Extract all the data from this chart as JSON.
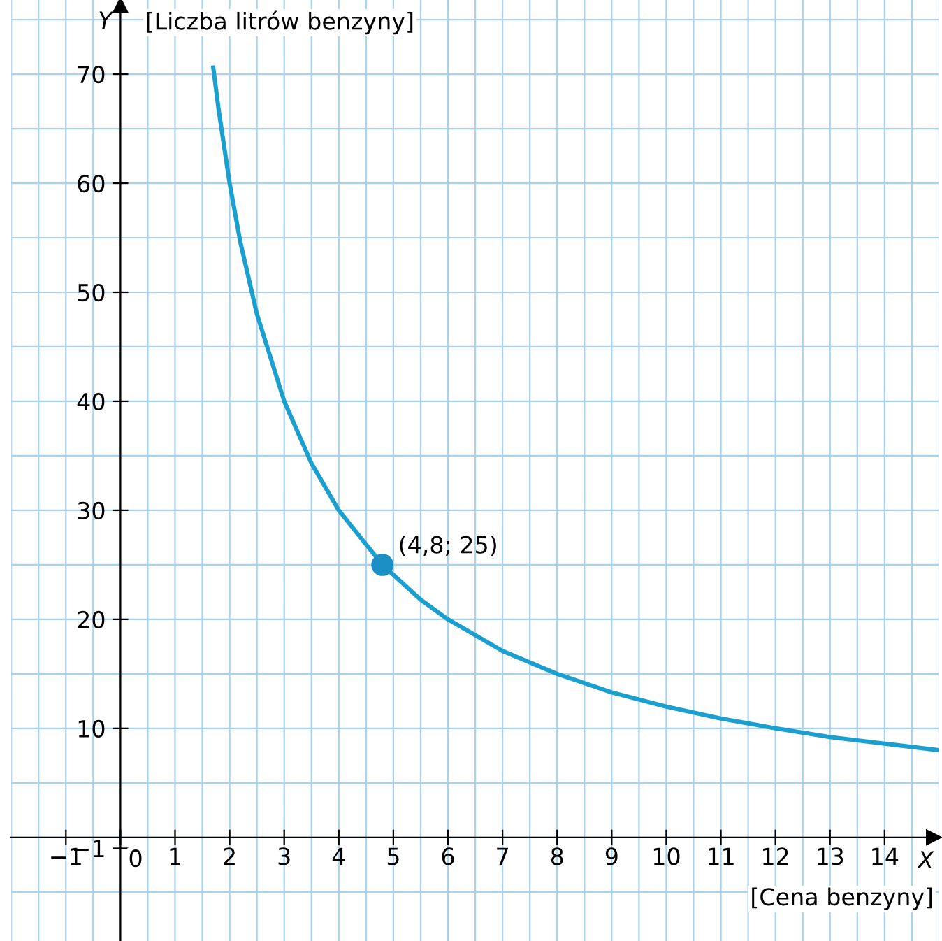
{
  "chart_data": {
    "type": "line",
    "xlabel": "[Cena benzyny]",
    "ylabel": "[Liczba litrów benzyny]",
    "xlim": [
      -2,
      15
    ],
    "ylim": [
      -9.5,
      76.8
    ],
    "xticks": [
      {
        "value": -1,
        "label": "−1"
      },
      {
        "value": 0,
        "label": "0"
      },
      1,
      2,
      3,
      4,
      5,
      6,
      7,
      8,
      9,
      10,
      11,
      12,
      13,
      14
    ],
    "yticks": [
      {
        "value": -1,
        "label": "−1"
      },
      10,
      20,
      30,
      40,
      50,
      60,
      70
    ],
    "grid": true,
    "legend": false,
    "series": [
      {
        "color": "#1b9fce",
        "x": [
          1.7,
          1.8,
          2,
          2.2,
          2.5,
          3,
          3.5,
          4,
          4.8,
          5.5,
          6,
          7,
          8,
          9,
          10,
          11,
          12,
          13,
          14,
          15
        ],
        "values": [
          70.6,
          66.7,
          60,
          54.5,
          48,
          40,
          34.3,
          30,
          25,
          21.8,
          20,
          17.1,
          15,
          13.3,
          12,
          10.9,
          10,
          9.2,
          8.6,
          8
        ]
      },
      {
        "type": "scatter",
        "color": "#1b8fc4",
        "marker": "circle",
        "x": [
          4.8
        ],
        "values": [
          25
        ]
      }
    ],
    "annotations": [
      {
        "text": "(4,8; 25)",
        "x": 4.8,
        "y": 25
      },
      "Y",
      "X"
    ]
  }
}
